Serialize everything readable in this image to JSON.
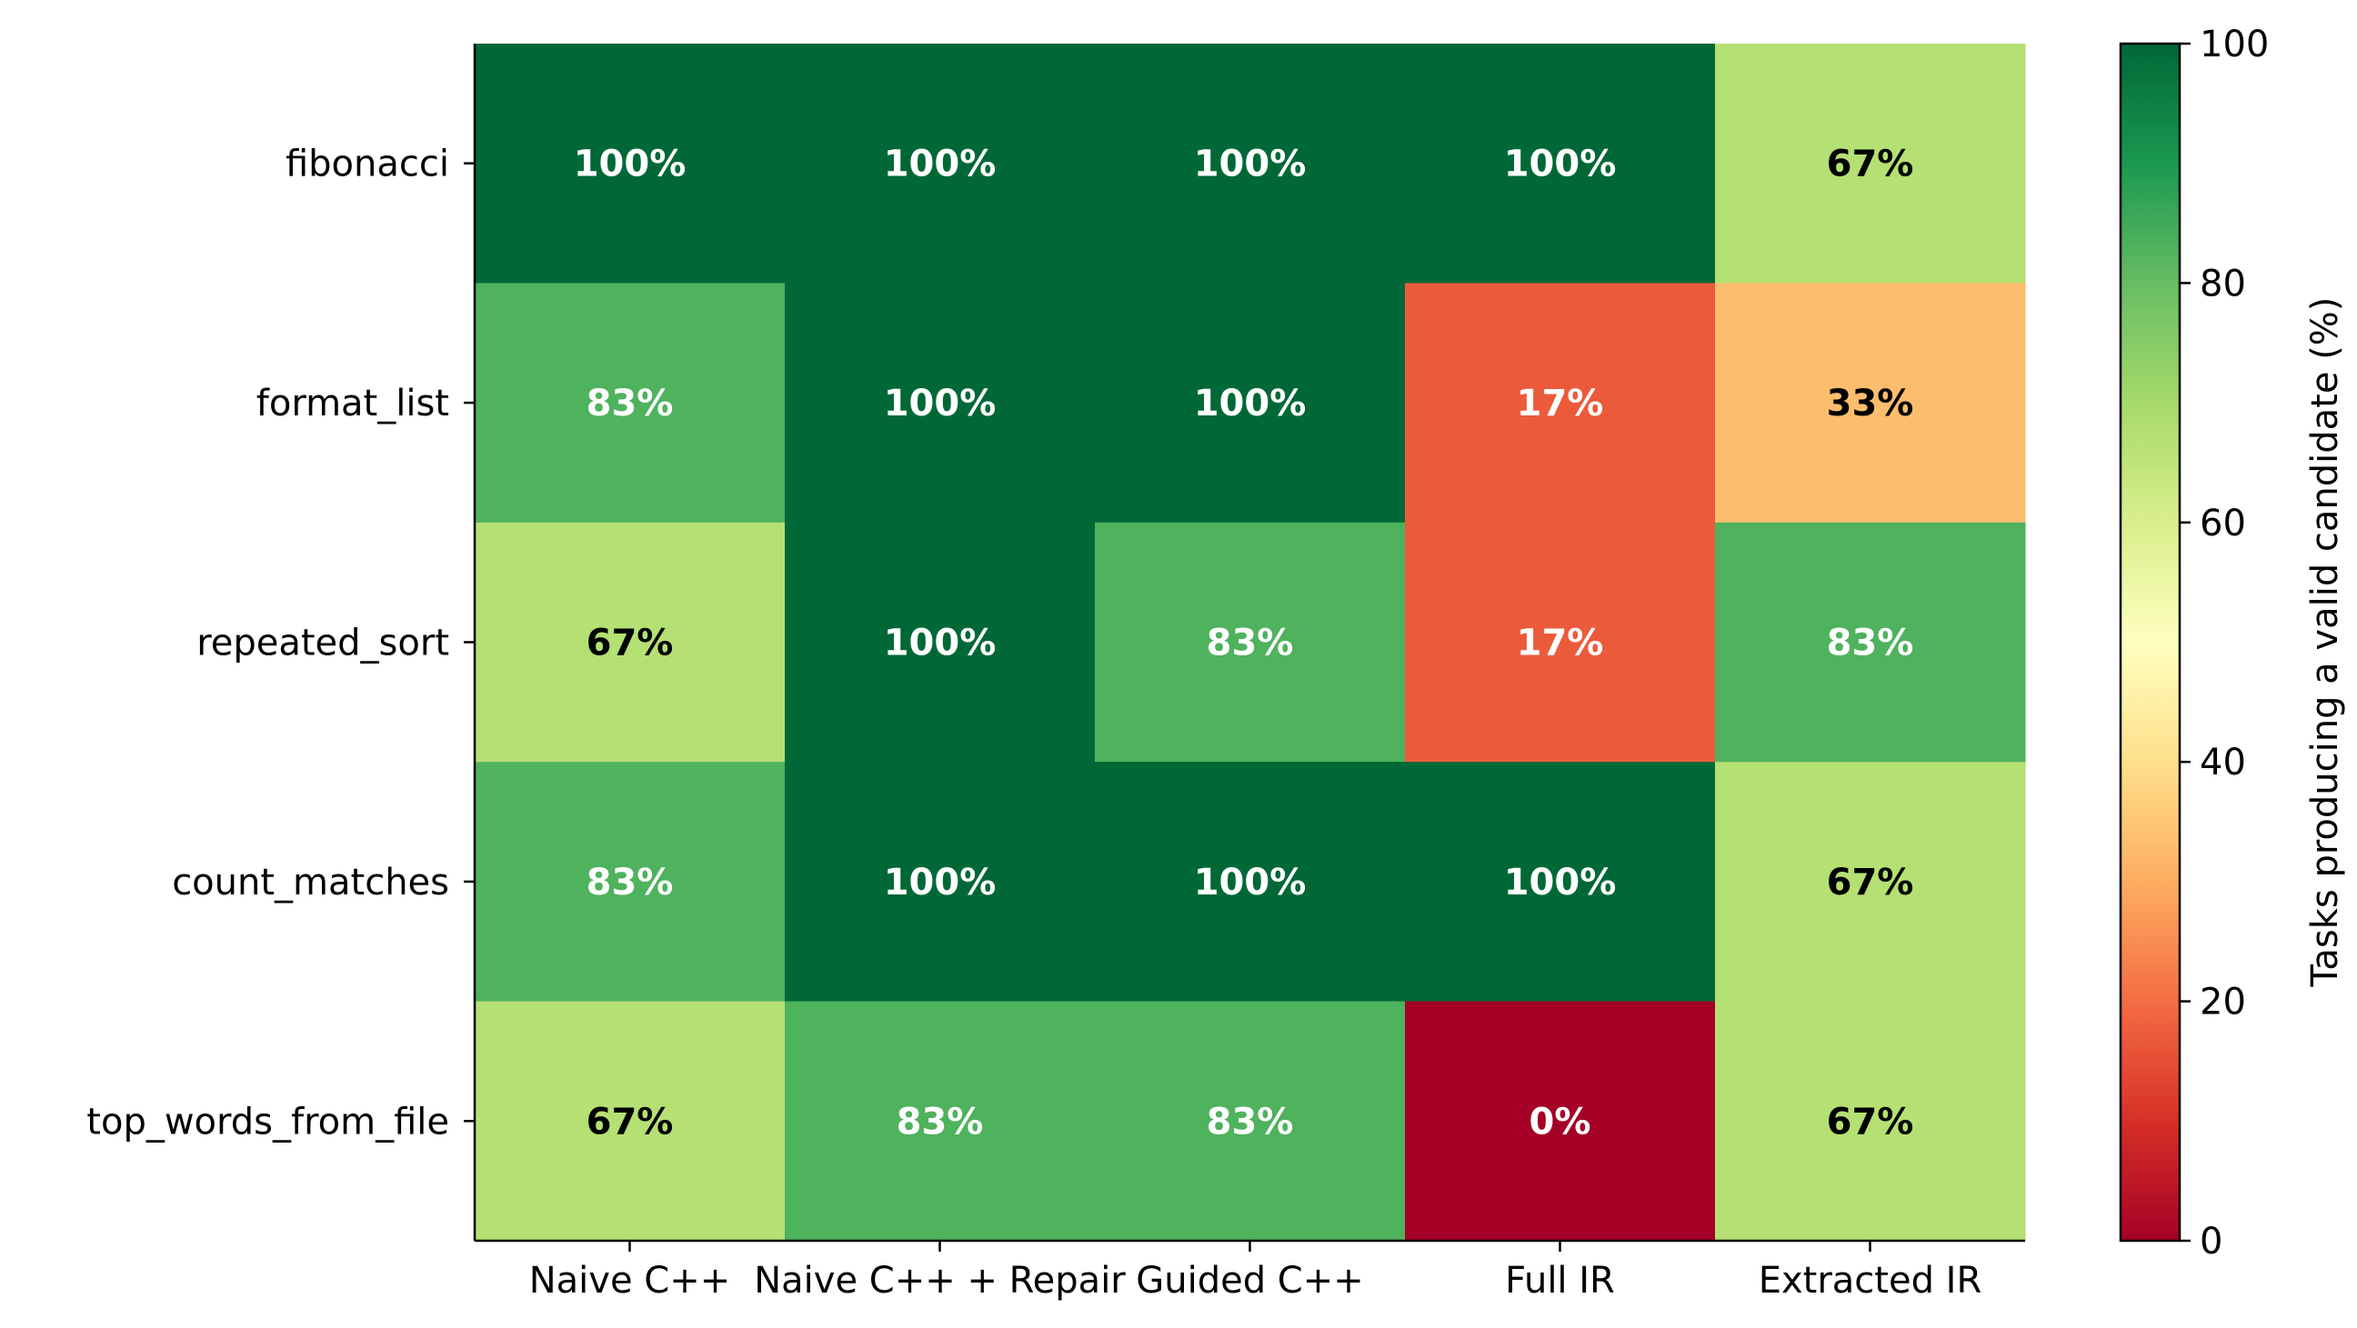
{
  "chart_data": {
    "type": "heatmap",
    "title": "",
    "xlabel": "",
    "ylabel": "",
    "x_categories": [
      "Naive C++",
      "Naive C++ + Repair",
      "Guided C++",
      "Full IR",
      "Extracted IR"
    ],
    "y_categories": [
      "fibonacci",
      "format_list",
      "repeated_sort",
      "count_matches",
      "top_words_from_file"
    ],
    "values": [
      [
        100,
        100,
        100,
        100,
        67
      ],
      [
        83,
        100,
        100,
        17,
        33
      ],
      [
        67,
        100,
        83,
        17,
        83
      ],
      [
        83,
        100,
        100,
        100,
        67
      ],
      [
        67,
        83,
        83,
        0,
        67
      ]
    ],
    "cell_labels": [
      [
        "100%",
        "100%",
        "100%",
        "100%",
        "67%"
      ],
      [
        "83%",
        "100%",
        "100%",
        "17%",
        "33%"
      ],
      [
        "67%",
        "100%",
        "83%",
        "17%",
        "83%"
      ],
      [
        "83%",
        "100%",
        "100%",
        "100%",
        "67%"
      ],
      [
        "67%",
        "83%",
        "83%",
        "0%",
        "67%"
      ]
    ],
    "colorbar": {
      "label": "Tasks producing a valid candidate (%)",
      "ticks": [
        0,
        20,
        40,
        60,
        80,
        100
      ],
      "tick_labels": [
        "0",
        "20",
        "40",
        "60",
        "80",
        "100"
      ],
      "range": [
        0,
        100
      ],
      "colormap": "RdYlGn"
    }
  }
}
